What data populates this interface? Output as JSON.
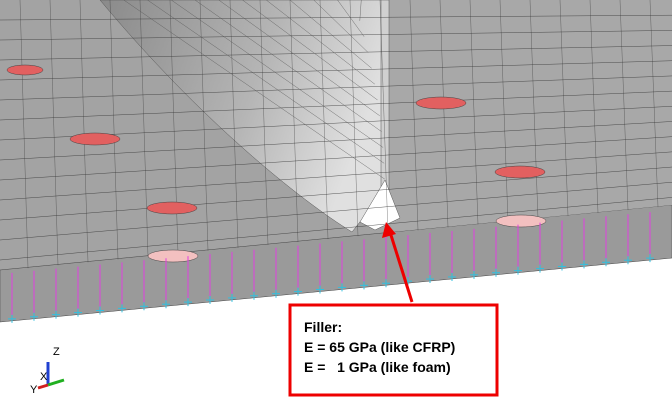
{
  "annotation": {
    "lines": [
      "Filler:",
      "E = 65 GPa (like CFRP)",
      "E =   1 GPa (like foam)"
    ]
  },
  "triad": {
    "z": "Z",
    "y": "Y",
    "x": "X"
  }
}
